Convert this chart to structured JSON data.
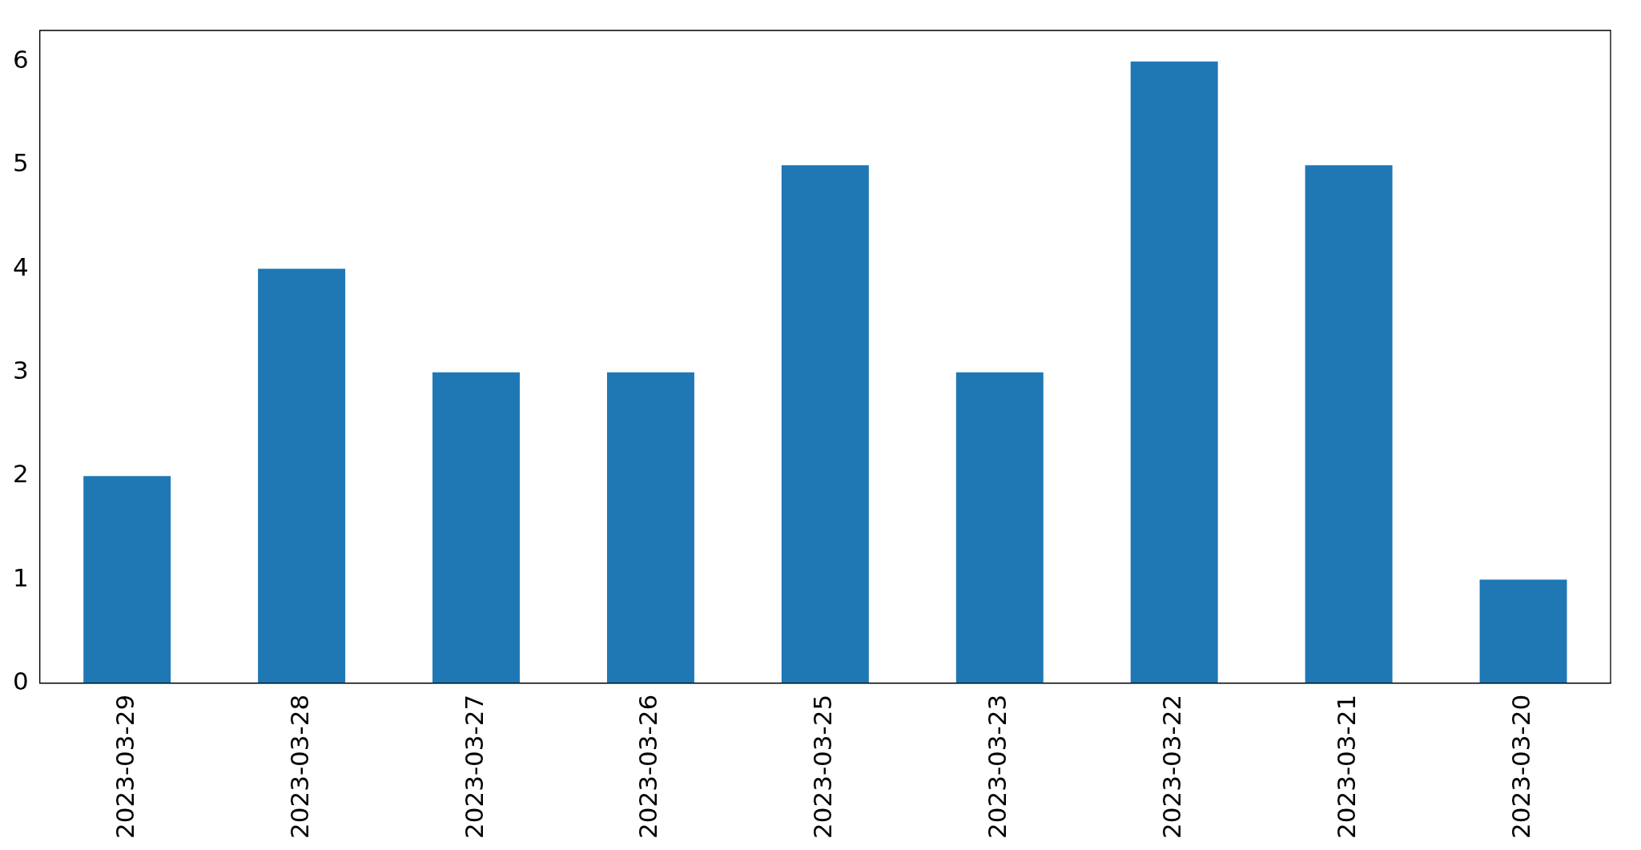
{
  "chart_data": {
    "type": "bar",
    "categories": [
      "2023-03-29",
      "2023-03-28",
      "2023-03-27",
      "2023-03-26",
      "2023-03-25",
      "2023-03-23",
      "2023-03-22",
      "2023-03-21",
      "2023-03-20"
    ],
    "values": [
      2,
      4,
      3,
      3,
      5,
      3,
      6,
      5,
      1
    ],
    "color": "#1f77b4",
    "ylim": [
      0,
      6.3
    ],
    "yticks": [
      0,
      1,
      2,
      3,
      4,
      5,
      6
    ]
  }
}
